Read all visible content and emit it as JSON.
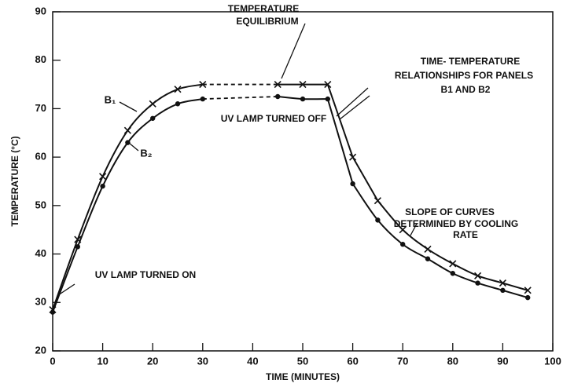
{
  "chart_data": {
    "type": "line",
    "x_label": "TIME (MINUTES)",
    "y_label": "TEMPERATURE (°C)",
    "xlim": [
      0,
      100
    ],
    "xticks": [
      0,
      10,
      20,
      30,
      40,
      50,
      60,
      70,
      80,
      90,
      100
    ],
    "ylim": [
      20,
      90
    ],
    "yticks": [
      20,
      30,
      40,
      50,
      60,
      70,
      80,
      90
    ],
    "x": [
      0,
      5,
      10,
      15,
      20,
      25,
      30,
      45,
      50,
      55,
      60,
      65,
      70,
      75,
      80,
      85,
      90,
      95
    ],
    "series": [
      {
        "name": "B₁",
        "color": "#111111",
        "marker": "x",
        "values": [
          28.5,
          43,
          56,
          65.5,
          71,
          74,
          75,
          75,
          75,
          75,
          60,
          51,
          45,
          41,
          38,
          35.5,
          34,
          32.5
        ]
      },
      {
        "name": "B₂",
        "color": "#111111",
        "marker": "o",
        "values": [
          28,
          41.5,
          54,
          63,
          68,
          71,
          72,
          72.5,
          72,
          72,
          54.5,
          47,
          42,
          39,
          36,
          34,
          32.5,
          31
        ]
      }
    ],
    "annotations": [
      {
        "lines": [
          "TEMPERATURE",
          "EQUILIBRIUM"
        ]
      },
      {
        "lines": [
          "TIME- TEMPERATURE",
          "RELATIONSHIPS FOR PANELS",
          "B1 AND B2"
        ]
      },
      {
        "lines": [
          "UV LAMP TURNED OFF"
        ]
      },
      {
        "lines": [
          "UV LAMP TURNED ON"
        ]
      },
      {
        "lines": [
          "SLOPE OF CURVES",
          "DETERMINED BY COOLING",
          "RATE"
        ]
      }
    ]
  }
}
